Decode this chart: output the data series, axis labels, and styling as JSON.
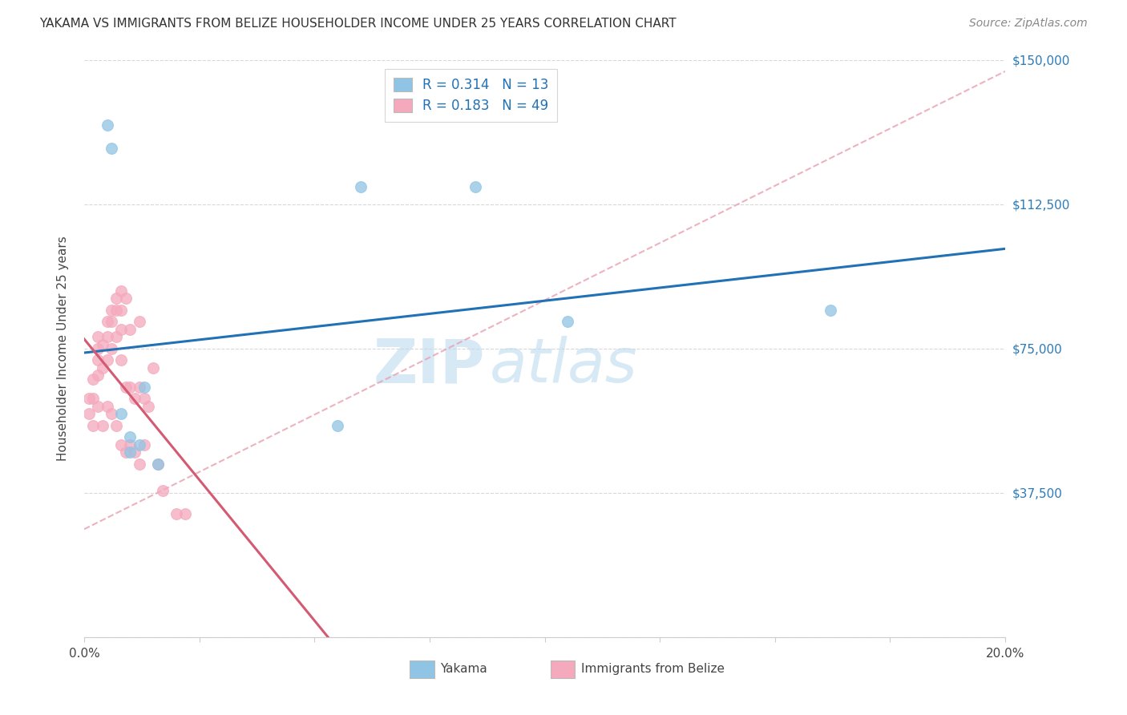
{
  "title": "YAKAMA VS IMMIGRANTS FROM BELIZE HOUSEHOLDER INCOME UNDER 25 YEARS CORRELATION CHART",
  "source": "Source: ZipAtlas.com",
  "ylabel": "Householder Income Under 25 years",
  "xlim": [
    0.0,
    0.2
  ],
  "ylim": [
    0,
    150000
  ],
  "xtick_positions": [
    0.0,
    0.025,
    0.05,
    0.075,
    0.1,
    0.125,
    0.15,
    0.175,
    0.2
  ],
  "xtick_labels": [
    "0.0%",
    "",
    "",
    "",
    "",
    "",
    "",
    "",
    "20.0%"
  ],
  "ytick_labels_right": [
    "$150,000",
    "$112,500",
    "$75,000",
    "$37,500"
  ],
  "ytick_values_right": [
    150000,
    112500,
    75000,
    37500
  ],
  "ytick_values_grid": [
    150000,
    112500,
    75000,
    37500,
    0
  ],
  "watermark_line1": "ZIP",
  "watermark_line2": "atlas",
  "r_yakama": 0.314,
  "n_yakama": 13,
  "r_belize": 0.183,
  "n_belize": 49,
  "color_yakama": "#90c4e4",
  "color_belize": "#f4a9bc",
  "color_line_yakama": "#2171b5",
  "color_line_belize": "#d45a72",
  "color_dashed": "#e8a0b0",
  "legend_yakama": "Yakama",
  "legend_belize": "Immigrants from Belize",
  "yakama_x": [
    0.005,
    0.006,
    0.008,
    0.01,
    0.01,
    0.012,
    0.013,
    0.016,
    0.055,
    0.06,
    0.085,
    0.105,
    0.162
  ],
  "yakama_y": [
    133000,
    127000,
    58000,
    52000,
    48000,
    50000,
    65000,
    45000,
    55000,
    117000,
    117000,
    82000,
    85000
  ],
  "belize_x": [
    0.001,
    0.001,
    0.002,
    0.002,
    0.002,
    0.003,
    0.003,
    0.003,
    0.003,
    0.003,
    0.004,
    0.004,
    0.004,
    0.005,
    0.005,
    0.005,
    0.005,
    0.006,
    0.006,
    0.006,
    0.006,
    0.007,
    0.007,
    0.007,
    0.007,
    0.008,
    0.008,
    0.008,
    0.008,
    0.008,
    0.009,
    0.009,
    0.009,
    0.01,
    0.01,
    0.01,
    0.011,
    0.011,
    0.012,
    0.012,
    0.012,
    0.013,
    0.013,
    0.014,
    0.015,
    0.016,
    0.017,
    0.02,
    0.022
  ],
  "belize_y": [
    62000,
    58000,
    67000,
    62000,
    55000,
    78000,
    75000,
    72000,
    68000,
    60000,
    76000,
    70000,
    55000,
    82000,
    78000,
    72000,
    60000,
    85000,
    82000,
    75000,
    58000,
    88000,
    85000,
    78000,
    55000,
    90000,
    85000,
    80000,
    72000,
    50000,
    88000,
    65000,
    48000,
    80000,
    65000,
    50000,
    62000,
    48000,
    82000,
    65000,
    45000,
    62000,
    50000,
    60000,
    70000,
    45000,
    38000,
    32000,
    32000
  ]
}
